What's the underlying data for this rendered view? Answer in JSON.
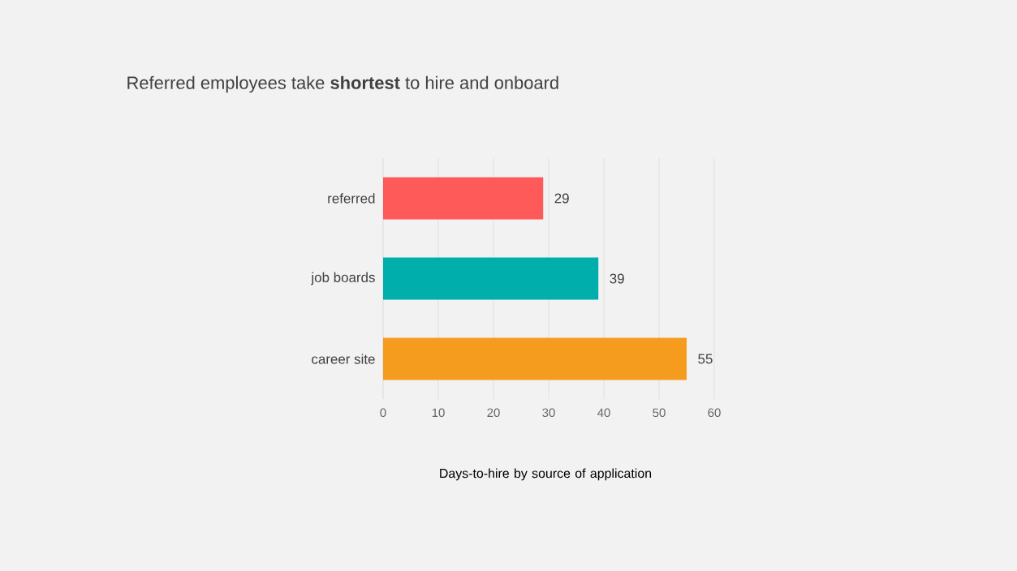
{
  "chart_data": {
    "type": "bar",
    "orientation": "horizontal",
    "title": "Referred employees take **shortest** to hire and onboard",
    "xlabel": "Days-to-hire by source of application",
    "categories": [
      "referred",
      "job boards",
      "career site"
    ],
    "values": [
      29,
      39,
      55
    ],
    "colors": [
      "#fe5a5a",
      "#00aeab",
      "#f59b1e"
    ],
    "xlim": [
      0,
      60
    ],
    "xticks": [
      0,
      10,
      20,
      30,
      40,
      50,
      60
    ],
    "grid": "x",
    "value_labels": [
      "29",
      "39",
      "55"
    ]
  }
}
